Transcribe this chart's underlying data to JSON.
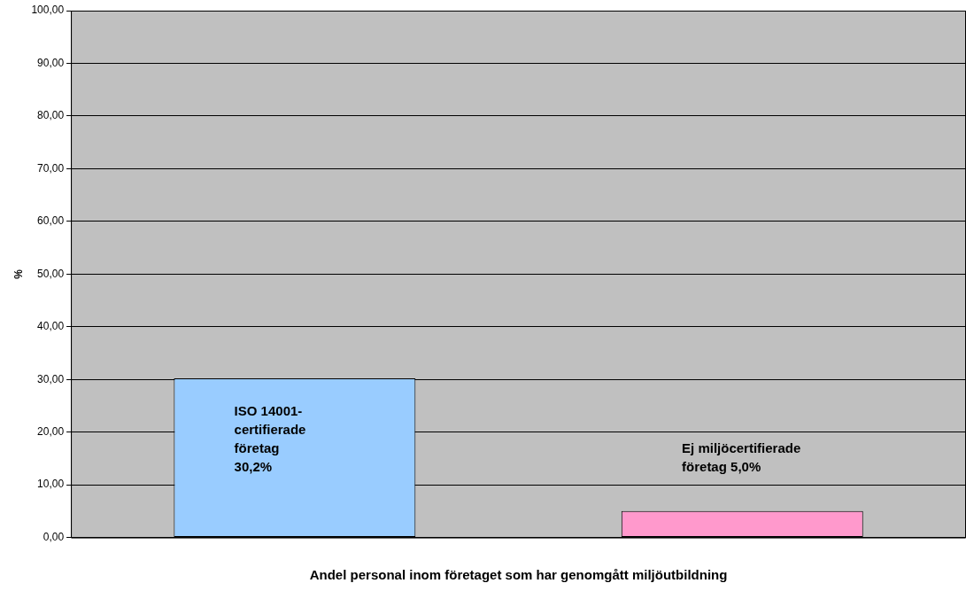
{
  "chart_data": {
    "type": "bar",
    "xlabel": "Andel personal inom företaget som har genomgått miljöutbildning",
    "ylabel": "%",
    "categories": [
      null,
      null
    ],
    "values": [
      30.2,
      5.0
    ],
    "colors": [
      "#99ccff",
      "#ff99cc"
    ],
    "value_labels": [
      "ISO 14001-\ncertifierade\nföretag\n30,2%",
      "Ej miljöcertifierade\nföretag 5,0%"
    ],
    "ylim": [
      0,
      100
    ],
    "yticks": [
      {
        "value": 0,
        "label": "0,00"
      },
      {
        "value": 10,
        "label": "10,00"
      },
      {
        "value": 20,
        "label": "20,00"
      },
      {
        "value": 30,
        "label": "30,00"
      },
      {
        "value": 40,
        "label": "40,00"
      },
      {
        "value": 50,
        "label": "50,00"
      },
      {
        "value": 60,
        "label": "60,00"
      },
      {
        "value": 70,
        "label": "70,00"
      },
      {
        "value": 80,
        "label": "80,00"
      },
      {
        "value": 90,
        "label": "90,00"
      },
      {
        "value": 100,
        "label": "100,00"
      }
    ],
    "grid": "y",
    "legend": false
  }
}
